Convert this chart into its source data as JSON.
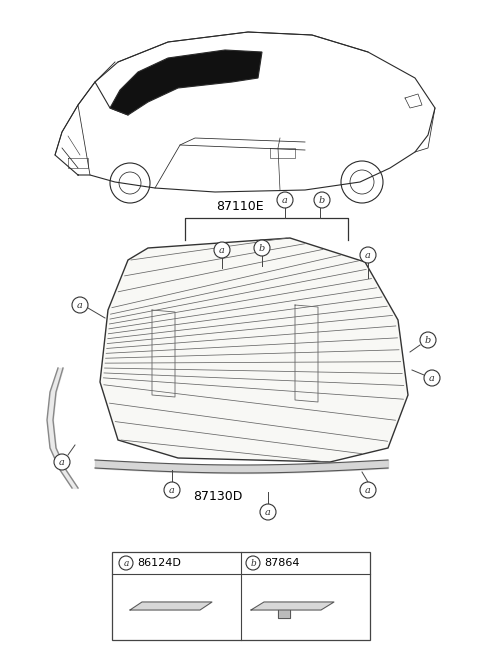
{
  "bg_color": "#ffffff",
  "part_label_87110E": "87110E",
  "part_label_87130D": "87130D",
  "legend_a_code": "86124D",
  "legend_b_code": "87864",
  "car_color": "#2a2a2a",
  "glass_facecolor": "#f8f8f5",
  "line_color": "#555555",
  "callout_color": "#333333"
}
